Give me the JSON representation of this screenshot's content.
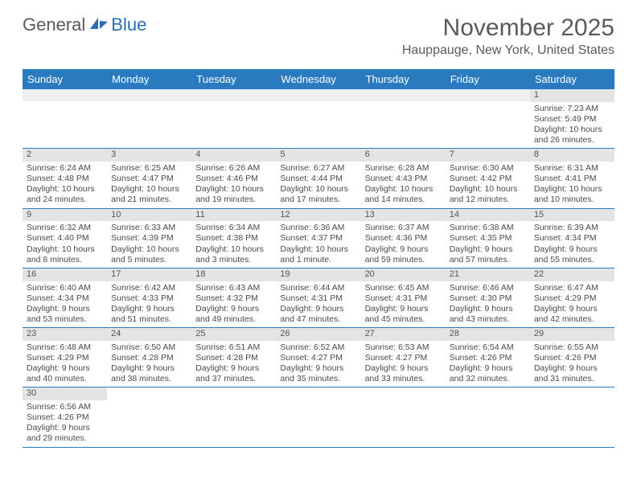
{
  "logo": {
    "text_gray": "General",
    "text_blue": "Blue"
  },
  "title": "November 2025",
  "location": "Hauppauge, New York, United States",
  "day_headers": [
    "Sunday",
    "Monday",
    "Tuesday",
    "Wednesday",
    "Thursday",
    "Friday",
    "Saturday"
  ],
  "colors": {
    "header_bg": "#2a7ac0",
    "daynum_bg": "#e4e4e4",
    "row_border": "#2a7ac0",
    "text": "#4a4a4a"
  },
  "weeks": [
    [
      {
        "empty": true
      },
      {
        "empty": true
      },
      {
        "empty": true
      },
      {
        "empty": true
      },
      {
        "empty": true
      },
      {
        "empty": true
      },
      {
        "n": "1",
        "sr": "Sunrise: 7:23 AM",
        "ss": "Sunset: 5:49 PM",
        "dl": "Daylight: 10 hours and 26 minutes."
      }
    ],
    [
      {
        "n": "2",
        "sr": "Sunrise: 6:24 AM",
        "ss": "Sunset: 4:48 PM",
        "dl": "Daylight: 10 hours and 24 minutes."
      },
      {
        "n": "3",
        "sr": "Sunrise: 6:25 AM",
        "ss": "Sunset: 4:47 PM",
        "dl": "Daylight: 10 hours and 21 minutes."
      },
      {
        "n": "4",
        "sr": "Sunrise: 6:26 AM",
        "ss": "Sunset: 4:46 PM",
        "dl": "Daylight: 10 hours and 19 minutes."
      },
      {
        "n": "5",
        "sr": "Sunrise: 6:27 AM",
        "ss": "Sunset: 4:44 PM",
        "dl": "Daylight: 10 hours and 17 minutes."
      },
      {
        "n": "6",
        "sr": "Sunrise: 6:28 AM",
        "ss": "Sunset: 4:43 PM",
        "dl": "Daylight: 10 hours and 14 minutes."
      },
      {
        "n": "7",
        "sr": "Sunrise: 6:30 AM",
        "ss": "Sunset: 4:42 PM",
        "dl": "Daylight: 10 hours and 12 minutes."
      },
      {
        "n": "8",
        "sr": "Sunrise: 6:31 AM",
        "ss": "Sunset: 4:41 PM",
        "dl": "Daylight: 10 hours and 10 minutes."
      }
    ],
    [
      {
        "n": "9",
        "sr": "Sunrise: 6:32 AM",
        "ss": "Sunset: 4:40 PM",
        "dl": "Daylight: 10 hours and 8 minutes."
      },
      {
        "n": "10",
        "sr": "Sunrise: 6:33 AM",
        "ss": "Sunset: 4:39 PM",
        "dl": "Daylight: 10 hours and 5 minutes."
      },
      {
        "n": "11",
        "sr": "Sunrise: 6:34 AM",
        "ss": "Sunset: 4:38 PM",
        "dl": "Daylight: 10 hours and 3 minutes."
      },
      {
        "n": "12",
        "sr": "Sunrise: 6:36 AM",
        "ss": "Sunset: 4:37 PM",
        "dl": "Daylight: 10 hours and 1 minute."
      },
      {
        "n": "13",
        "sr": "Sunrise: 6:37 AM",
        "ss": "Sunset: 4:36 PM",
        "dl": "Daylight: 9 hours and 59 minutes."
      },
      {
        "n": "14",
        "sr": "Sunrise: 6:38 AM",
        "ss": "Sunset: 4:35 PM",
        "dl": "Daylight: 9 hours and 57 minutes."
      },
      {
        "n": "15",
        "sr": "Sunrise: 6:39 AM",
        "ss": "Sunset: 4:34 PM",
        "dl": "Daylight: 9 hours and 55 minutes."
      }
    ],
    [
      {
        "n": "16",
        "sr": "Sunrise: 6:40 AM",
        "ss": "Sunset: 4:34 PM",
        "dl": "Daylight: 9 hours and 53 minutes."
      },
      {
        "n": "17",
        "sr": "Sunrise: 6:42 AM",
        "ss": "Sunset: 4:33 PM",
        "dl": "Daylight: 9 hours and 51 minutes."
      },
      {
        "n": "18",
        "sr": "Sunrise: 6:43 AM",
        "ss": "Sunset: 4:32 PM",
        "dl": "Daylight: 9 hours and 49 minutes."
      },
      {
        "n": "19",
        "sr": "Sunrise: 6:44 AM",
        "ss": "Sunset: 4:31 PM",
        "dl": "Daylight: 9 hours and 47 minutes."
      },
      {
        "n": "20",
        "sr": "Sunrise: 6:45 AM",
        "ss": "Sunset: 4:31 PM",
        "dl": "Daylight: 9 hours and 45 minutes."
      },
      {
        "n": "21",
        "sr": "Sunrise: 6:46 AM",
        "ss": "Sunset: 4:30 PM",
        "dl": "Daylight: 9 hours and 43 minutes."
      },
      {
        "n": "22",
        "sr": "Sunrise: 6:47 AM",
        "ss": "Sunset: 4:29 PM",
        "dl": "Daylight: 9 hours and 42 minutes."
      }
    ],
    [
      {
        "n": "23",
        "sr": "Sunrise: 6:48 AM",
        "ss": "Sunset: 4:29 PM",
        "dl": "Daylight: 9 hours and 40 minutes."
      },
      {
        "n": "24",
        "sr": "Sunrise: 6:50 AM",
        "ss": "Sunset: 4:28 PM",
        "dl": "Daylight: 9 hours and 38 minutes."
      },
      {
        "n": "25",
        "sr": "Sunrise: 6:51 AM",
        "ss": "Sunset: 4:28 PM",
        "dl": "Daylight: 9 hours and 37 minutes."
      },
      {
        "n": "26",
        "sr": "Sunrise: 6:52 AM",
        "ss": "Sunset: 4:27 PM",
        "dl": "Daylight: 9 hours and 35 minutes."
      },
      {
        "n": "27",
        "sr": "Sunrise: 6:53 AM",
        "ss": "Sunset: 4:27 PM",
        "dl": "Daylight: 9 hours and 33 minutes."
      },
      {
        "n": "28",
        "sr": "Sunrise: 6:54 AM",
        "ss": "Sunset: 4:26 PM",
        "dl": "Daylight: 9 hours and 32 minutes."
      },
      {
        "n": "29",
        "sr": "Sunrise: 6:55 AM",
        "ss": "Sunset: 4:26 PM",
        "dl": "Daylight: 9 hours and 31 minutes."
      }
    ],
    [
      {
        "n": "30",
        "sr": "Sunrise: 6:56 AM",
        "ss": "Sunset: 4:26 PM",
        "dl": "Daylight: 9 hours and 29 minutes."
      },
      {
        "empty": true
      },
      {
        "empty": true
      },
      {
        "empty": true
      },
      {
        "empty": true
      },
      {
        "empty": true
      },
      {
        "empty": true
      }
    ]
  ]
}
